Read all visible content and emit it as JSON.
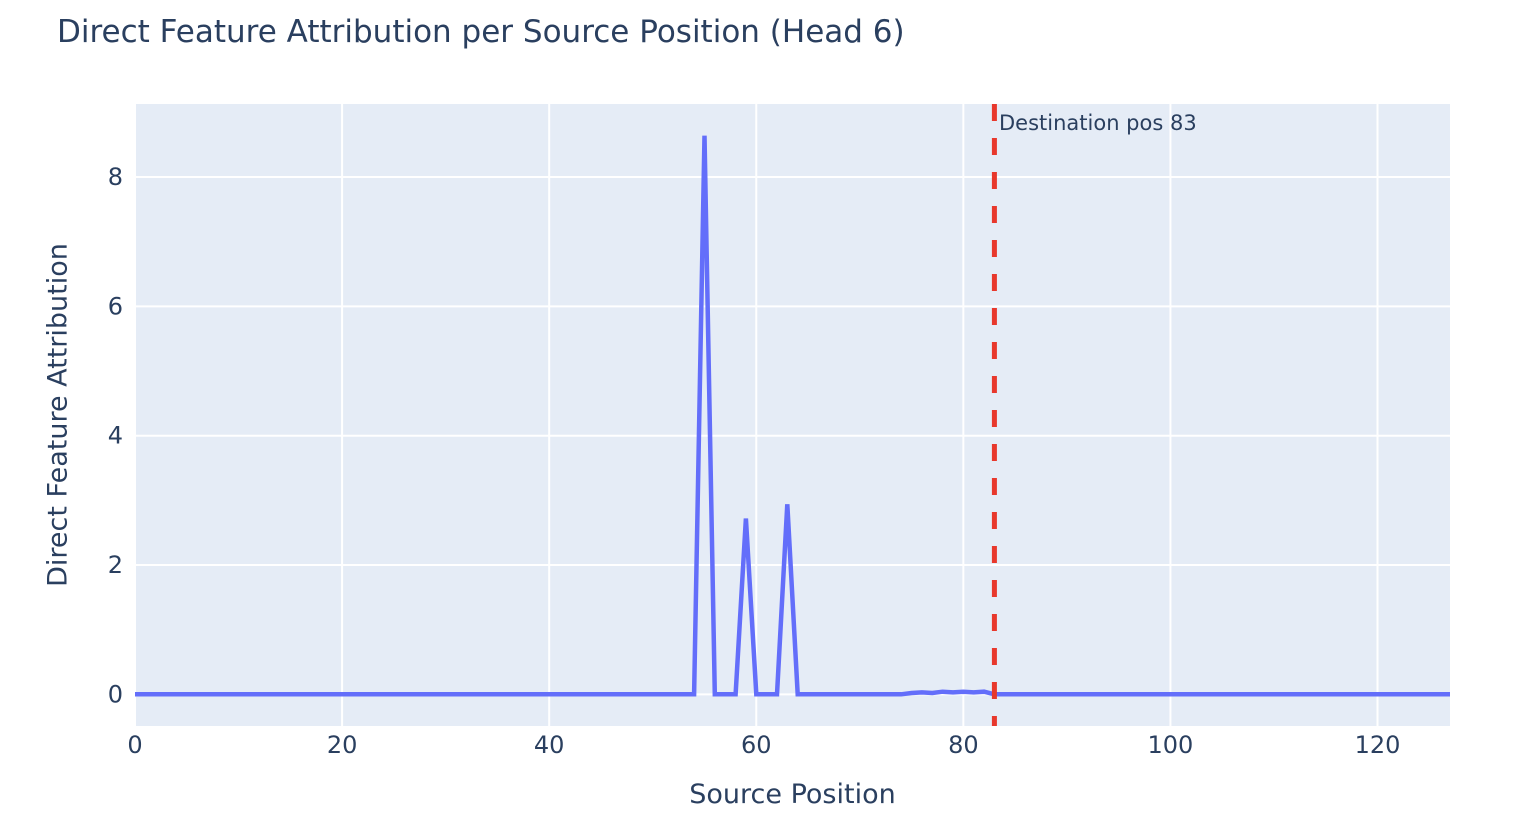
{
  "chart_data": {
    "type": "line",
    "title": "Direct Feature Attribution per Source Position (Head 6)",
    "xlabel": "Source Position",
    "ylabel": "Direct Feature Attribution",
    "x_range": [
      0,
      127
    ],
    "y_range": [
      -0.49,
      9.13
    ],
    "x_ticks": [
      0,
      20,
      40,
      60,
      80,
      100,
      120
    ],
    "y_ticks": [
      0,
      2,
      4,
      6,
      8
    ],
    "grid": true,
    "legend": "none",
    "series": [
      {
        "name": "direct-feature-attribution",
        "color": "#636efa",
        "x_start": 0,
        "x_step": 1,
        "values": [
          0,
          0,
          0,
          0,
          0,
          0,
          0,
          0,
          0,
          0,
          0,
          0,
          0,
          0,
          0,
          0,
          0,
          0,
          0,
          0,
          0,
          0,
          0,
          0,
          0,
          0,
          0,
          0,
          0,
          0,
          0,
          0,
          0,
          0,
          0,
          0,
          0,
          0,
          0,
          0,
          0,
          0,
          0,
          0,
          0,
          0,
          0,
          0,
          0,
          0,
          0,
          0,
          0,
          0,
          0,
          8.64,
          0,
          0,
          0,
          2.72,
          0,
          0,
          0,
          2.94,
          0,
          0,
          0,
          0,
          0,
          0,
          0,
          0,
          0,
          0,
          0,
          0.02,
          0.03,
          0.02,
          0.04,
          0.03,
          0.04,
          0.03,
          0.04,
          0,
          0,
          0,
          0,
          0,
          0,
          0,
          0,
          0,
          0,
          0,
          0,
          0,
          0,
          0,
          0,
          0,
          0,
          0,
          0,
          0,
          0,
          0,
          0,
          0,
          0,
          0,
          0,
          0,
          0,
          0,
          0,
          0,
          0,
          0,
          0,
          0,
          0,
          0,
          0,
          0,
          0,
          0,
          0,
          0
        ]
      }
    ],
    "vline": {
      "x": 83,
      "label": "Destination pos 83",
      "color": "#e8382c",
      "style": "dashed"
    },
    "colors": {
      "plot_background": "#e5ecf6",
      "gridline": "#ffffff",
      "text": "#2a3f5f",
      "line": "#636efa",
      "vline": "#e8382c",
      "paper_background": "#ffffff"
    }
  }
}
